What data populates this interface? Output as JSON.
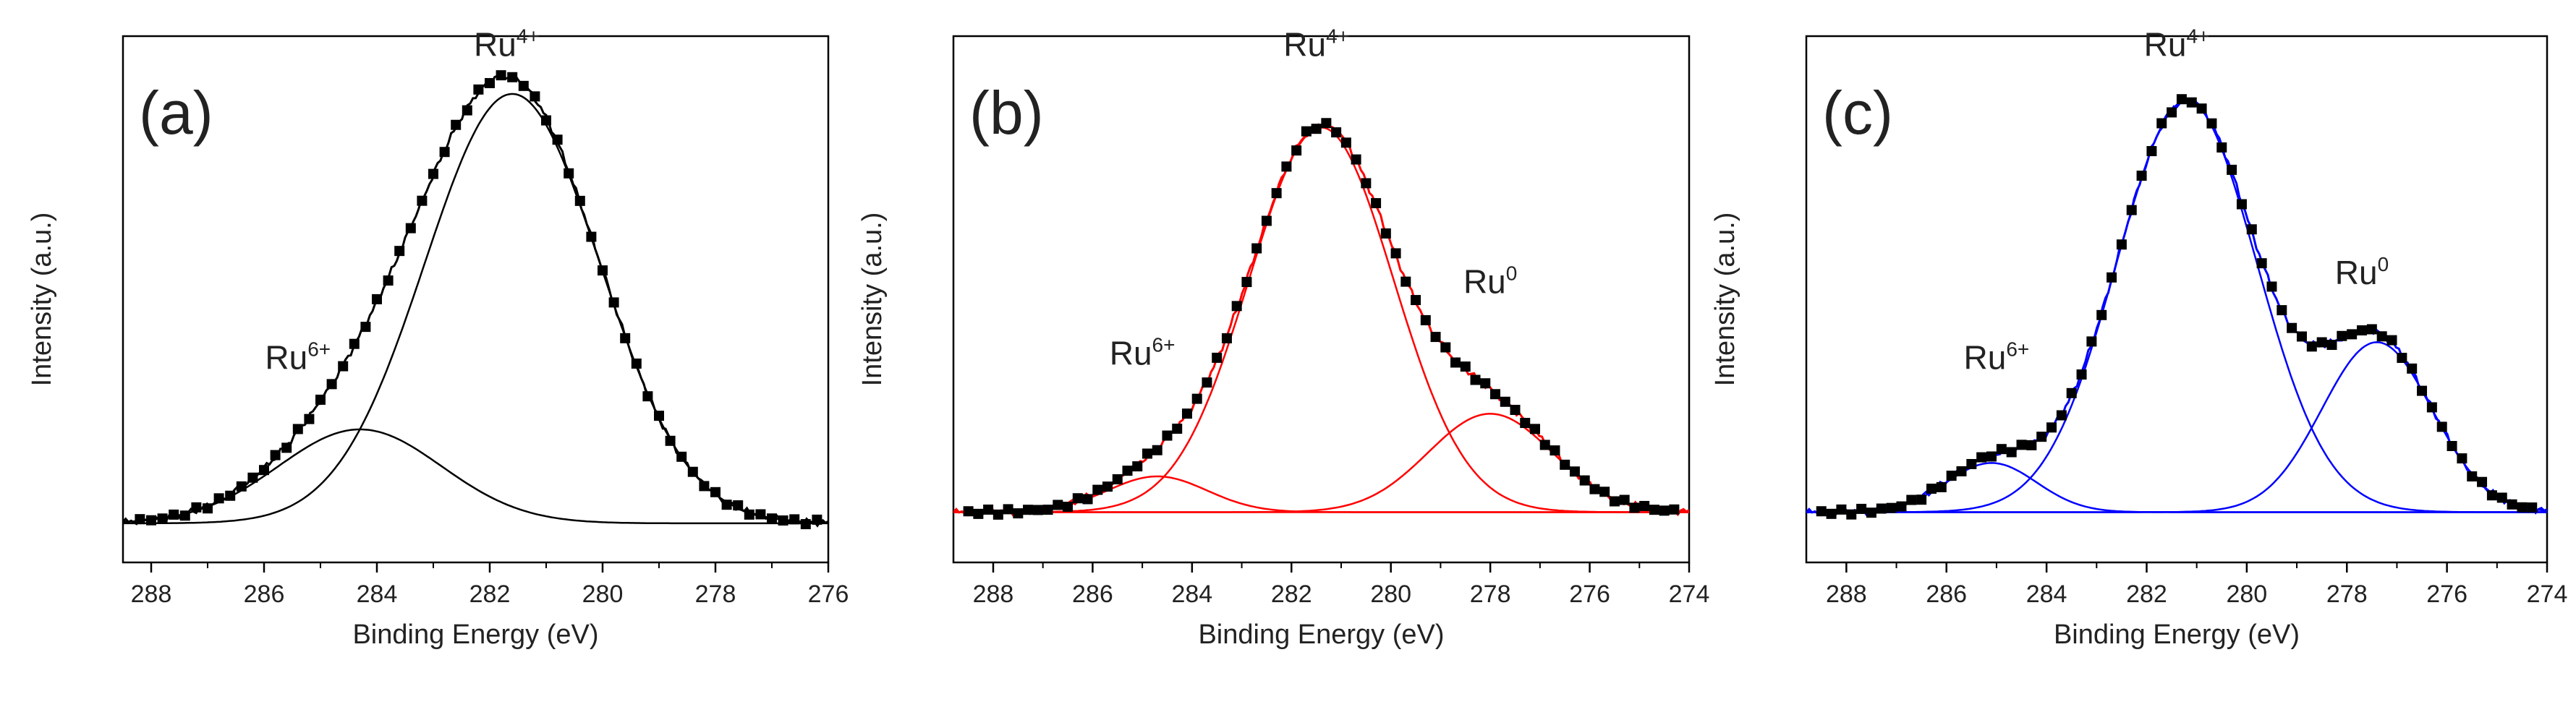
{
  "chart_data": [
    {
      "type": "line",
      "panel_label": "(a)",
      "xlabel": "Binding Energy (eV)",
      "ylabel": "Intensity (a.u.)",
      "xlim": [
        288.5,
        276.0
      ],
      "xticks": [
        288,
        286,
        284,
        282,
        280,
        278,
        276
      ],
      "ylim": [
        0,
        1.0
      ],
      "line_color": "#000000",
      "baseline": 0.005,
      "series": [
        {
          "name": "Ru6+",
          "type": "gaussian",
          "center": 284.3,
          "amplitude": 0.21,
          "sigma": 1.45
        },
        {
          "name": "Ru4+",
          "type": "gaussian",
          "center": 281.6,
          "amplitude": 0.96,
          "sigma": 1.55
        }
      ],
      "peak_labels": [
        {
          "ion": "Ru",
          "charge": "4+",
          "x": 281.7,
          "y": 1.05
        },
        {
          "ion": "Ru",
          "charge": "6+",
          "x": 285.4,
          "y": 0.35
        }
      ]
    },
    {
      "type": "line",
      "panel_label": "(b)",
      "xlabel": "Binding Energy (eV)",
      "ylabel": "Intensity (a.u.)",
      "xlim": [
        288.8,
        274.0
      ],
      "xticks": [
        288,
        286,
        284,
        282,
        280,
        278,
        276,
        274
      ],
      "ylim": [
        0,
        1.0
      ],
      "line_color": "#ff0000",
      "baseline": 0.03,
      "series": [
        {
          "name": "Ru6+",
          "type": "gaussian",
          "center": 284.7,
          "amplitude": 0.08,
          "sigma": 1.0
        },
        {
          "name": "Ru4+",
          "type": "gaussian",
          "center": 281.4,
          "amplitude": 0.86,
          "sigma": 1.45
        },
        {
          "name": "Ru0",
          "type": "gaussian",
          "center": 278.0,
          "amplitude": 0.22,
          "sigma": 1.25
        }
      ],
      "peak_labels": [
        {
          "ion": "Ru",
          "charge": "4+",
          "x": 281.5,
          "y": 1.05
        },
        {
          "ion": "Ru",
          "charge": "0",
          "x": 278.0,
          "y": 0.52
        },
        {
          "ion": "Ru",
          "charge": "6+",
          "x": 285.0,
          "y": 0.36
        }
      ]
    },
    {
      "type": "line",
      "panel_label": "(c)",
      "xlabel": "Binding Energy (eV)",
      "ylabel": "Intensity (a.u.)",
      "xlim": [
        288.8,
        274.0
      ],
      "xticks": [
        288,
        286,
        284,
        282,
        280,
        278,
        276,
        274
      ],
      "ylim": [
        0,
        1.0
      ],
      "line_color": "#0000ff",
      "baseline": 0.03,
      "series": [
        {
          "name": "Ru6+",
          "type": "gaussian",
          "center": 285.1,
          "amplitude": 0.11,
          "sigma": 0.9
        },
        {
          "name": "Ru4+",
          "type": "gaussian",
          "center": 281.2,
          "amplitude": 0.92,
          "sigma": 1.4
        },
        {
          "name": "Ru0",
          "type": "gaussian",
          "center": 277.4,
          "amplitude": 0.38,
          "sigma": 1.1
        }
      ],
      "peak_labels": [
        {
          "ion": "Ru",
          "charge": "4+",
          "x": 281.4,
          "y": 1.05
        },
        {
          "ion": "Ru",
          "charge": "0",
          "x": 277.7,
          "y": 0.54
        },
        {
          "ion": "Ru",
          "charge": "6+",
          "x": 285.0,
          "y": 0.35
        }
      ]
    }
  ]
}
